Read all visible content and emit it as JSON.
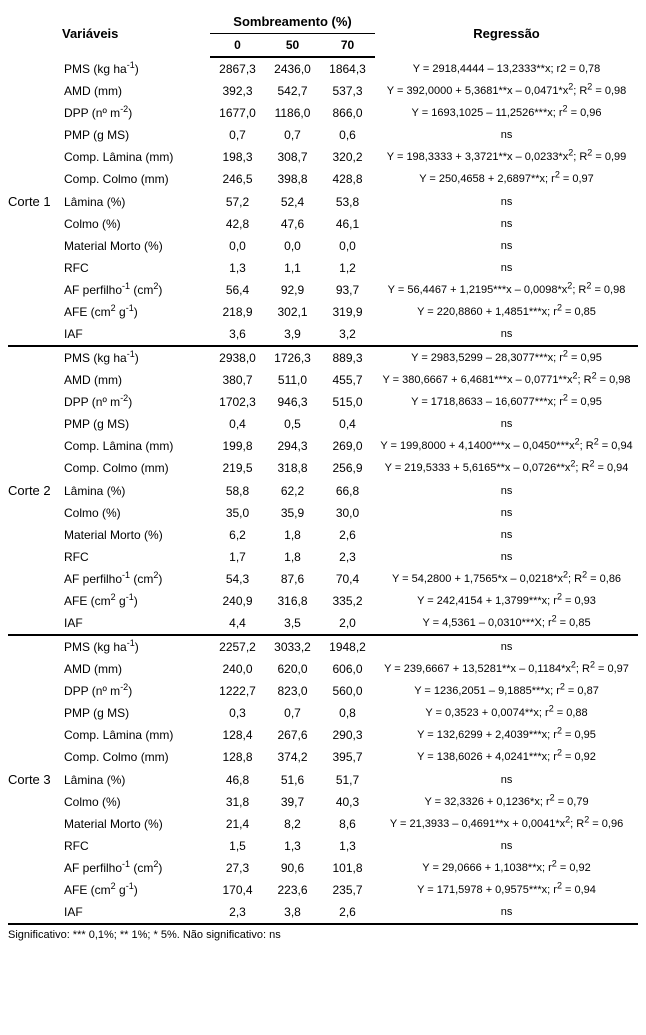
{
  "headers": {
    "variaveis": "Variáveis",
    "sombreamento": "Sombreamento (%)",
    "regressao": "Regressão",
    "levels": [
      "0",
      "50",
      "70"
    ]
  },
  "footnote": "Significativo: *** 0,1%; ** 1%; * 5%. Não significativo: ns",
  "variableLabels": [
    "PMS (kg ha<sup>-1</sup>)",
    "AMD (mm)",
    "DPP (nº m<sup>-2</sup>)",
    "PMP (g MS)",
    "Comp. Lâmina (mm)",
    "Comp. Colmo (mm)",
    "Lâmina (%)",
    "Colmo (%)",
    "Material Morto (%)",
    "RFC",
    "AF perfilho<sup>-1</sup> (cm<sup>2</sup>)",
    "AFE (cm<sup>2</sup> g<sup>-1</sup>)",
    "IAF"
  ],
  "blocks": [
    {
      "name": "Corte 1",
      "rows": [
        {
          "v": [
            "2867,3",
            "2436,0",
            "1864,3"
          ],
          "r": "Y = 2918,4444 – 13,2333**x; r2 = 0,78"
        },
        {
          "v": [
            "392,3",
            "542,7",
            "537,3"
          ],
          "r": "Y = 392,0000 + 5,3681**x – 0,0471*x<sup>2</sup>; R<sup>2</sup> = 0,98"
        },
        {
          "v": [
            "1677,0",
            "1186,0",
            "866,0"
          ],
          "r": "Y = 1693,1025 – 11,2526***x; r<sup>2</sup> = 0,96"
        },
        {
          "v": [
            "0,7",
            "0,7",
            "0,6"
          ],
          "r": "ns"
        },
        {
          "v": [
            "198,3",
            "308,7",
            "320,2"
          ],
          "r": "Y = 198,3333 + 3,3721**x – 0,0233*x<sup>2</sup>; R<sup>2</sup> = 0,99"
        },
        {
          "v": [
            "246,5",
            "398,8",
            "428,8"
          ],
          "r": "Y = 250,4658 + 2,6897**x; r<sup>2</sup> = 0,97"
        },
        {
          "v": [
            "57,2",
            "52,4",
            "53,8"
          ],
          "r": "ns"
        },
        {
          "v": [
            "42,8",
            "47,6",
            "46,1"
          ],
          "r": "ns"
        },
        {
          "v": [
            "0,0",
            "0,0",
            "0,0"
          ],
          "r": "ns"
        },
        {
          "v": [
            "1,3",
            "1,1",
            "1,2"
          ],
          "r": "ns"
        },
        {
          "v": [
            "56,4",
            "92,9",
            "93,7"
          ],
          "r": "Y = 56,4467 + 1,2195***x – 0,0098*x<sup>2</sup>; R<sup>2</sup> = 0,98"
        },
        {
          "v": [
            "218,9",
            "302,1",
            "319,9"
          ],
          "r": "Y = 220,8860 + 1,4851***x; r<sup>2</sup> = 0,85"
        },
        {
          "v": [
            "3,6",
            "3,9",
            "3,2"
          ],
          "r": "ns"
        }
      ]
    },
    {
      "name": "Corte 2",
      "rows": [
        {
          "v": [
            "2938,0",
            "1726,3",
            "889,3"
          ],
          "r": "Y = 2983,5299 – 28,3077***x; r<sup>2</sup> = 0,95"
        },
        {
          "v": [
            "380,7",
            "511,0",
            "455,7"
          ],
          "r": "Y = 380,6667 + 6,4681***x – 0,0771**x<sup>2</sup>; R<sup>2</sup> = 0,98"
        },
        {
          "v": [
            "1702,3",
            "946,3",
            "515,0"
          ],
          "r": "Y = 1718,8633 – 16,6077***x; r<sup>2</sup> = 0,95"
        },
        {
          "v": [
            "0,4",
            "0,5",
            "0,4"
          ],
          "r": "ns"
        },
        {
          "v": [
            "199,8",
            "294,3",
            "269,0"
          ],
          "r": "Y = 199,8000 + 4,1400***x – 0,0450***x<sup>2</sup>; R<sup>2</sup> = 0,94"
        },
        {
          "v": [
            "219,5",
            "318,8",
            "256,9"
          ],
          "r": "Y = 219,5333 + 5,6165**x – 0,0726**x<sup>2</sup>; R<sup>2</sup> = 0,94"
        },
        {
          "v": [
            "58,8",
            "62,2",
            "66,8"
          ],
          "r": "ns"
        },
        {
          "v": [
            "35,0",
            "35,9",
            "30,0"
          ],
          "r": "ns"
        },
        {
          "v": [
            "6,2",
            "1,8",
            "2,6"
          ],
          "r": "ns"
        },
        {
          "v": [
            "1,7",
            "1,8",
            "2,3"
          ],
          "r": "ns"
        },
        {
          "v": [
            "54,3",
            "87,6",
            "70,4"
          ],
          "r": "Y = 54,2800 + 1,7565*x – 0,0218*x<sup>2</sup>; R<sup>2</sup> = 0,86"
        },
        {
          "v": [
            "240,9",
            "316,8",
            "335,2"
          ],
          "r": "Y = 242,4154 + 1,3799***x; r<sup>2</sup> = 0,93"
        },
        {
          "v": [
            "4,4",
            "3,5",
            "2,0"
          ],
          "r": "Y = 4,5361 – 0,0310***X; r<sup>2</sup> = 0,85"
        }
      ]
    },
    {
      "name": "Corte 3",
      "rows": [
        {
          "v": [
            "2257,2",
            "3033,2",
            "1948,2"
          ],
          "r": "ns"
        },
        {
          "v": [
            "240,0",
            "620,0",
            "606,0"
          ],
          "r": "Y = 239,6667 + 13,5281**x – 0,1184*x<sup>2</sup>; R<sup>2</sup> = 0,97"
        },
        {
          "v": [
            "1222,7",
            "823,0",
            "560,0"
          ],
          "r": "Y = 1236,2051 – 9,1885***x; r<sup>2</sup> = 0,87"
        },
        {
          "v": [
            "0,3",
            "0,7",
            "0,8"
          ],
          "r": "Y = 0,3523 + 0,0074**x; r<sup>2</sup> = 0,88"
        },
        {
          "v": [
            "128,4",
            "267,6",
            "290,3"
          ],
          "r": "Y = 132,6299 + 2,4039***x; r<sup>2</sup> = 0,95"
        },
        {
          "v": [
            "128,8",
            "374,2",
            "395,7"
          ],
          "r": "Y = 138,6026 + 4,0241***x; r<sup>2</sup> = 0,92"
        },
        {
          "v": [
            "46,8",
            "51,6",
            "51,7"
          ],
          "r": "ns"
        },
        {
          "v": [
            "31,8",
            "39,7",
            "40,3"
          ],
          "r": "Y = 32,3326 + 0,1236*x; r<sup>2</sup> = 0,79"
        },
        {
          "v": [
            "21,4",
            "8,2",
            "8,6"
          ],
          "r": "Y = 21,3933 – 0,4691**x + 0,0041*x<sup>2</sup>; R<sup>2</sup> = 0,96"
        },
        {
          "v": [
            "1,5",
            "1,3",
            "1,3"
          ],
          "r": "ns"
        },
        {
          "v": [
            "27,3",
            "90,6",
            "101,8"
          ],
          "r": "Y = 29,0666 + 1,1038**x; r<sup>2</sup> = 0,92"
        },
        {
          "v": [
            "170,4",
            "223,6",
            "235,7"
          ],
          "r": "Y = 171,5978 + 0,9575***x; r<sup>2</sup> = 0,94"
        },
        {
          "v": [
            "2,3",
            "3,8",
            "2,6"
          ],
          "r": "ns"
        }
      ]
    }
  ]
}
